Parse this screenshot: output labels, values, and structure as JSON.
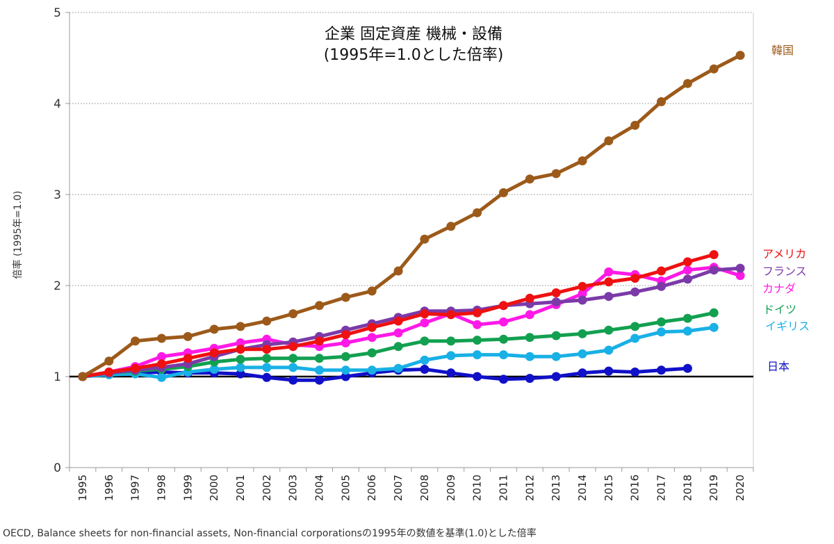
{
  "chart_data": {
    "type": "line",
    "title": [
      "企業 固定資産 機械・設備",
      "(1995年=1.0とした倍率)"
    ],
    "ylabel": "倍率 (1995年=1.0)",
    "xlabel": "",
    "source": "OECD, Balance sheets for non-financial assets, Non-financial corporationsの1995年の数値を基準(1.0)とした倍率",
    "ylim": [
      0,
      5
    ],
    "yticks": [
      0,
      1,
      2,
      3,
      4,
      5
    ],
    "grid": "horizontal-dotted",
    "baseline": 1,
    "legend": "right",
    "x": [
      "1995",
      "1996",
      "1997",
      "1998",
      "1999",
      "2000",
      "2001",
      "2002",
      "2003",
      "2004",
      "2005",
      "2006",
      "2007",
      "2008",
      "2009",
      "2010",
      "2011",
      "2012",
      "2013",
      "2014",
      "2015",
      "2016",
      "2017",
      "2018",
      "2019",
      "2020"
    ],
    "series": [
      {
        "name": "日本",
        "color": "#1010c8",
        "values": [
          1.0,
          1.03,
          1.04,
          1.05,
          1.04,
          1.04,
          1.03,
          0.99,
          0.96,
          0.96,
          1.0,
          1.04,
          1.07,
          1.08,
          1.04,
          1.0,
          0.97,
          0.98,
          1.0,
          1.04,
          1.06,
          1.05,
          1.07,
          1.09,
          null,
          null
        ]
      },
      {
        "name": "イギリス",
        "color": "#19b0e6",
        "values": [
          1.0,
          1.02,
          1.03,
          0.99,
          1.05,
          1.08,
          1.1,
          1.1,
          1.1,
          1.07,
          1.07,
          1.07,
          1.09,
          1.18,
          1.23,
          1.24,
          1.24,
          1.22,
          1.22,
          1.25,
          1.29,
          1.42,
          1.49,
          1.5,
          1.54,
          null
        ]
      },
      {
        "name": "ドイツ",
        "color": "#12a050",
        "values": [
          1.0,
          1.04,
          1.06,
          1.08,
          1.11,
          1.16,
          1.19,
          1.2,
          1.2,
          1.2,
          1.22,
          1.26,
          1.33,
          1.39,
          1.39,
          1.4,
          1.41,
          1.43,
          1.45,
          1.47,
          1.51,
          1.55,
          1.6,
          1.64,
          1.7,
          null
        ]
      },
      {
        "name": "カナダ",
        "color": "#ff19e6",
        "values": [
          1.0,
          1.05,
          1.11,
          1.22,
          1.26,
          1.31,
          1.37,
          1.41,
          1.35,
          1.33,
          1.37,
          1.43,
          1.48,
          1.59,
          1.69,
          1.57,
          1.6,
          1.68,
          1.79,
          1.91,
          2.15,
          2.12,
          2.05,
          2.17,
          2.2,
          2.11
        ]
      },
      {
        "name": "フランス",
        "color": "#7b3aa8",
        "values": [
          1.0,
          1.04,
          1.07,
          1.1,
          1.14,
          1.22,
          1.3,
          1.35,
          1.38,
          1.44,
          1.51,
          1.58,
          1.65,
          1.72,
          1.72,
          1.73,
          1.78,
          1.8,
          1.82,
          1.84,
          1.88,
          1.93,
          1.99,
          2.07,
          2.17,
          2.19
        ]
      },
      {
        "name": "アメリカ",
        "color": "#ee1111",
        "values": [
          1.0,
          1.05,
          1.09,
          1.14,
          1.2,
          1.26,
          1.3,
          1.3,
          1.33,
          1.39,
          1.46,
          1.54,
          1.61,
          1.69,
          1.68,
          1.7,
          1.78,
          1.86,
          1.92,
          1.99,
          2.04,
          2.08,
          2.16,
          2.26,
          2.34,
          null
        ]
      },
      {
        "name": "韓国",
        "color": "#9c5a1a",
        "values": [
          1.0,
          1.17,
          1.39,
          1.42,
          1.44,
          1.52,
          1.55,
          1.61,
          1.69,
          1.78,
          1.87,
          1.94,
          2.16,
          2.51,
          2.65,
          2.8,
          3.02,
          3.17,
          3.23,
          3.37,
          3.59,
          3.76,
          4.02,
          4.22,
          4.38,
          4.53
        ]
      }
    ]
  }
}
